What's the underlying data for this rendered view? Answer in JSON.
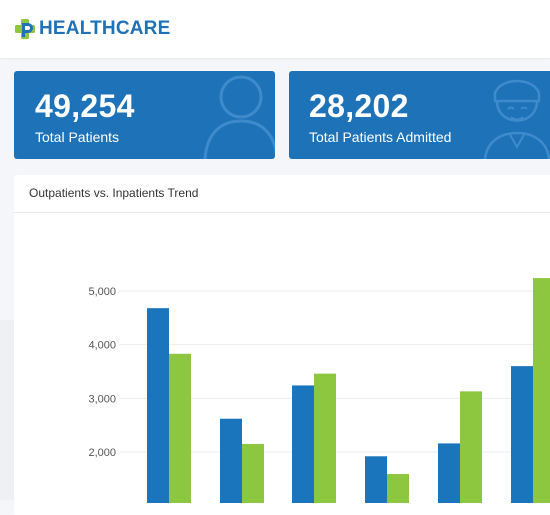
{
  "header": {
    "brand": "HEALTHCARE",
    "logo_icon": "medical-cross-plus-icon"
  },
  "stats": [
    {
      "value": "49,254",
      "label": "Total Patients",
      "icon": "user-silhouette-icon"
    },
    {
      "value": "28,202",
      "label": "Total Patients Admitted",
      "icon": "patient-nurse-face-icon"
    }
  ],
  "colors": {
    "brand": "#1d72b8",
    "accent_green": "#8dc63f",
    "bar_blue": "#1a75bc"
  },
  "chart_data": {
    "type": "bar",
    "title": "Outpatients vs. Inpatients Trend",
    "ylim": [
      1500,
      5600
    ],
    "y_ticks": [
      2000,
      3000,
      4000,
      5000
    ],
    "y_tick_labels": [
      "2,000",
      "3,000",
      "4,000",
      "5,000"
    ],
    "grid": true,
    "series": [
      {
        "color": "#1a75bc",
        "values": [
          4680,
          2620,
          3240,
          1920,
          2160,
          3600
        ]
      },
      {
        "color": "#8dc63f",
        "values": [
          3830,
          2150,
          3460,
          1590,
          3130,
          5240
        ]
      }
    ]
  }
}
